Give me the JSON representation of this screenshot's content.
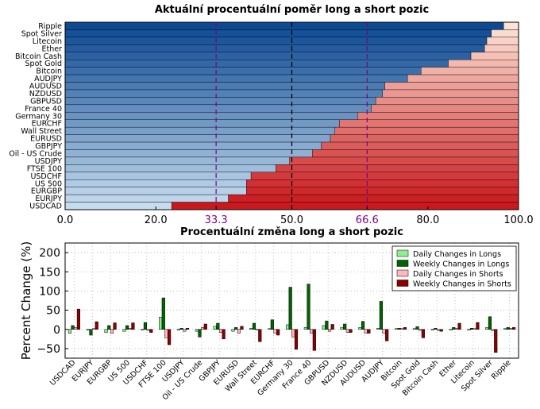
{
  "chart_data": [
    {
      "type": "bar",
      "orientation": "horizontal",
      "stacked": true,
      "title": "Aktuální procentuální poměr long a short pozic",
      "categories": [
        "Ripple",
        "Spot Silver",
        "Litecoin",
        "Ether",
        "Bitcoin Cash",
        "Spot Gold",
        "Bitcoin",
        "AUDJPY",
        "AUDUSD",
        "NZDUSD",
        "GBPUSD",
        "France 40",
        "Germany 30",
        "EURCHF",
        "Wall Street",
        "EURUSD",
        "GBPJPY",
        "Oil - US Crude",
        "USDJPY",
        "FTSE 100",
        "USDCHF",
        "US 500",
        "EURGBP",
        "EURJPY",
        "USDCAD"
      ],
      "long_values": [
        96.7,
        94.0,
        93.0,
        92.5,
        89.5,
        84.5,
        78.5,
        75.5,
        70.5,
        70.0,
        68.5,
        67.5,
        64.5,
        60.5,
        59.5,
        58.5,
        56.5,
        54.5,
        49.5,
        46.5,
        41.0,
        40.0,
        40.0,
        36.0,
        23.5
      ],
      "xlim": [
        0,
        100
      ],
      "xticks": [
        "0.0",
        "20.0",
        "33.3",
        "50.0",
        "66.6",
        "80.0",
        "100.0"
      ],
      "reference_lines": [
        33.3,
        50.0,
        66.6
      ],
      "colors": {
        "long_dark": "#0d4a94",
        "long_light": "#c6dcef",
        "short_light": "#fde3d6",
        "short_dark": "#cb181d",
        "reference": "#800080"
      }
    },
    {
      "type": "bar",
      "title": "Procentuální změna long a short pozic",
      "ylabel": "Percent Change (%)",
      "ylim": [
        -75,
        225
      ],
      "yticks": [
        "−50",
        "0",
        "50",
        "100",
        "150",
        "200"
      ],
      "grid": true,
      "legend_position": "top-right",
      "categories": [
        "USDCAD",
        "EURJPY",
        "EURGBP",
        "US 500",
        "USDCHF",
        "FTSE 100",
        "USDJPY",
        "Oil - US Crude",
        "GBPJPY",
        "EURUSD",
        "Wall Street",
        "EURCHF",
        "Germany 30",
        "France 40",
        "GBPUSD",
        "NZDUSD",
        "AUDUSD",
        "AUDJPY",
        "Bitcoin",
        "Spot Gold",
        "Bitcoin Cash",
        "Ether",
        "Litecoin",
        "Spot Silver",
        "Ripple"
      ],
      "series": [
        {
          "name": "Daily Changes in Longs",
          "color": "#90ee90",
          "values": [
            -10,
            -2,
            -8,
            -5,
            -2,
            32,
            -2,
            -5,
            8,
            -5,
            3,
            2,
            12,
            5,
            10,
            5,
            5,
            3,
            2,
            2,
            -2,
            -2,
            -2,
            5,
            2
          ]
        },
        {
          "name": "Weekly Changes in Longs",
          "color": "#006400",
          "values": [
            10,
            -15,
            10,
            10,
            18,
            82,
            3,
            -20,
            16,
            5,
            16,
            25,
            110,
            118,
            22,
            14,
            21,
            73,
            3,
            7,
            3,
            5,
            3,
            33,
            5
          ]
        },
        {
          "name": "Daily Changes in Shorts",
          "color": "#ffb6c1",
          "values": [
            5,
            2,
            -10,
            3,
            -3,
            -22,
            -5,
            5,
            -8,
            -10,
            -2,
            -10,
            -20,
            -10,
            -5,
            -8,
            -10,
            -10,
            2,
            -3,
            -3,
            3,
            2,
            -4,
            3
          ]
        },
        {
          "name": "Weekly Changes in Shorts",
          "color": "#8b0000",
          "values": [
            53,
            20,
            17,
            17,
            -8,
            -40,
            3,
            14,
            -25,
            8,
            -32,
            -15,
            -52,
            -55,
            13,
            -8,
            -10,
            -30,
            5,
            -22,
            -5,
            16,
            18,
            -60,
            5
          ]
        }
      ]
    }
  ]
}
